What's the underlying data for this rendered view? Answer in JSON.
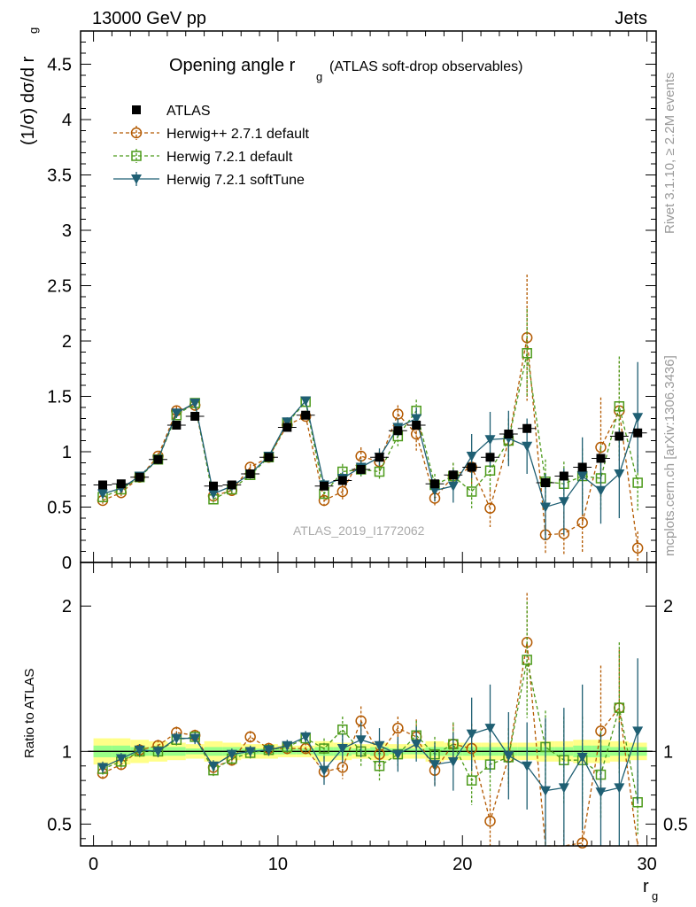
{
  "header": {
    "left": "13000 GeV pp",
    "right": "Jets"
  },
  "title": {
    "main": "Opening angle r",
    "sub": "g",
    "extra": "(ATLAS soft-drop observables)"
  },
  "ylabel_main": {
    "prefix": "(1/σ) dσ/d r",
    "sub": "g"
  },
  "ylabel_ratio": "Ratio to ATLAS",
  "xlabel": {
    "main": "r",
    "sub": "g"
  },
  "watermark": "ATLAS_2019_I1772062",
  "side_labels": {
    "rivet": "Rivet 3.1.10, ≥ 2.2M events",
    "mcplots": "mcplots.cern.ch [arXiv:1306.3436]"
  },
  "legend": [
    {
      "label": "ATLAS",
      "marker": "square-filled",
      "color": "#000000"
    },
    {
      "label": "Herwig++ 2.7.1 default",
      "marker": "circle-open",
      "color": "#b35900",
      "dash": true
    },
    {
      "label": "Herwig 7.2.1 default",
      "marker": "square-open",
      "color": "#4c9a1a",
      "dash": true
    },
    {
      "label": "Herwig 7.2.1 softTune",
      "marker": "triangle-down",
      "color": "#1f5f73",
      "dash": false
    }
  ],
  "chart_data": {
    "type": "line",
    "x": [
      0.5,
      1.5,
      2.5,
      3.5,
      4.5,
      5.5,
      6.5,
      7.5,
      8.5,
      9.5,
      10.5,
      11.5,
      12.5,
      13.5,
      14.5,
      15.5,
      16.5,
      17.5,
      18.5,
      19.5,
      20.5,
      21.5,
      22.5,
      23.5,
      24.5,
      25.5,
      26.5,
      27.5,
      28.5,
      29.5
    ],
    "xlim": [
      -0.7,
      30.5
    ],
    "xticks": [
      0,
      10,
      20,
      30
    ],
    "main_ylim": [
      0,
      4.8
    ],
    "main_yticks": [
      "0",
      "0.5",
      "1",
      "1.5",
      "2",
      "2.5",
      "3",
      "3.5",
      "4",
      "4.5"
    ],
    "ratio_ylim": [
      0.35,
      2.3
    ],
    "ratio_yticks": [
      "0.5",
      "1",
      "2"
    ],
    "data": {
      "name": "ATLAS",
      "values": [
        0.7,
        0.71,
        0.77,
        0.93,
        1.24,
        1.32,
        0.69,
        0.7,
        0.8,
        0.95,
        1.22,
        1.33,
        0.69,
        0.74,
        0.84,
        0.95,
        1.19,
        1.24,
        0.71,
        0.79,
        0.86,
        0.95,
        1.16,
        1.21,
        0.72,
        0.78,
        0.86,
        0.94,
        1.14,
        1.17
      ],
      "band_outer": [
        0.09,
        0.09,
        0.08,
        0.07,
        0.06,
        0.05,
        0.07,
        0.06,
        0.05,
        0.05,
        0.04,
        0.04,
        0.07,
        0.06,
        0.05,
        0.06,
        0.05,
        0.05,
        0.07,
        0.06,
        0.06,
        0.06,
        0.06,
        0.06,
        0.07,
        0.07,
        0.08,
        0.08,
        0.07,
        0.06
      ],
      "band_inner": [
        0.04,
        0.04,
        0.03,
        0.03,
        0.03,
        0.02,
        0.03,
        0.03,
        0.02,
        0.02,
        0.02,
        0.02,
        0.03,
        0.03,
        0.02,
        0.03,
        0.02,
        0.02,
        0.03,
        0.03,
        0.03,
        0.03,
        0.03,
        0.03,
        0.03,
        0.03,
        0.04,
        0.04,
        0.03,
        0.03
      ]
    },
    "series": [
      {
        "name": "Herwig++ 2.7.1 default",
        "values": [
          0.56,
          0.63,
          0.77,
          0.96,
          1.37,
          1.42,
          0.6,
          0.65,
          0.86,
          0.95,
          1.24,
          1.32,
          0.56,
          0.64,
          0.96,
          0.91,
          1.34,
          1.16,
          0.58,
          0.78,
          0.86,
          0.49,
          1.1,
          2.03,
          0.25,
          0.26,
          0.36,
          1.04,
          1.37,
          0.13
        ],
        "errors": [
          0.03,
          0.03,
          0.03,
          0.03,
          0.04,
          0.04,
          0.03,
          0.03,
          0.03,
          0.03,
          0.04,
          0.04,
          0.05,
          0.07,
          0.08,
          0.1,
          0.08,
          0.15,
          0.08,
          0.12,
          0.15,
          0.17,
          0.2,
          0.57,
          0.18,
          0.2,
          0.28,
          0.45,
          0.45,
          0.15
        ],
        "ratio": [
          0.85,
          0.91,
          1.01,
          1.04,
          1.13,
          1.11,
          0.89,
          0.94,
          1.1,
          1.02,
          1.02,
          1.02,
          0.86,
          0.89,
          1.21,
          0.98,
          1.16,
          1.1,
          0.87,
          1.05,
          1.02,
          0.52,
          0.96,
          1.75,
          0.28,
          0.2,
          0.37,
          1.14,
          1.3,
          0.2
        ],
        "ratio_err": [
          0.04,
          0.04,
          0.04,
          0.04,
          0.04,
          0.04,
          0.04,
          0.04,
          0.04,
          0.04,
          0.04,
          0.04,
          0.06,
          0.08,
          0.1,
          0.1,
          0.08,
          0.12,
          0.1,
          0.14,
          0.17,
          0.18,
          0.2,
          0.34,
          0.22,
          0.26,
          0.3,
          0.45,
          0.4,
          0.18
        ]
      },
      {
        "name": "Herwig 7.2.1 default",
        "values": [
          0.59,
          0.66,
          0.77,
          0.93,
          1.33,
          1.44,
          0.57,
          0.66,
          0.79,
          0.95,
          1.26,
          1.45,
          0.62,
          0.82,
          0.84,
          0.82,
          1.14,
          1.37,
          0.7,
          0.78,
          0.64,
          0.83,
          1.1,
          1.89,
          0.73,
          0.71,
          0.78,
          0.76,
          1.41,
          0.72
        ],
        "errors": [
          0.03,
          0.03,
          0.03,
          0.03,
          0.04,
          0.04,
          0.03,
          0.03,
          0.03,
          0.03,
          0.04,
          0.04,
          0.06,
          0.07,
          0.08,
          0.08,
          0.09,
          0.1,
          0.1,
          0.12,
          0.15,
          0.17,
          0.2,
          0.4,
          0.2,
          0.2,
          0.25,
          0.3,
          0.45,
          0.25
        ],
        "ratio": [
          0.88,
          0.93,
          1.0,
          1.0,
          1.08,
          1.1,
          0.87,
          0.95,
          0.99,
          1.01,
          1.03,
          1.09,
          1.02,
          1.15,
          1.0,
          0.9,
          0.98,
          1.11,
          0.98,
          1.05,
          0.8,
          0.91,
          0.96,
          1.63,
          1.03,
          0.94,
          0.94,
          0.84,
          1.3,
          0.65
        ],
        "ratio_err": [
          0.04,
          0.04,
          0.04,
          0.04,
          0.04,
          0.04,
          0.04,
          0.04,
          0.04,
          0.04,
          0.04,
          0.04,
          0.07,
          0.09,
          0.1,
          0.1,
          0.09,
          0.1,
          0.12,
          0.15,
          0.17,
          0.2,
          0.2,
          0.4,
          0.25,
          0.3,
          0.3,
          0.3,
          0.45,
          0.22
        ]
      },
      {
        "name": "Herwig 7.2.1 softTune",
        "values": [
          0.62,
          0.67,
          0.78,
          0.93,
          1.35,
          1.44,
          0.62,
          0.69,
          0.8,
          0.96,
          1.27,
          1.46,
          0.7,
          0.76,
          0.86,
          0.95,
          1.22,
          1.3,
          0.65,
          0.69,
          0.96,
          1.11,
          1.12,
          1.05,
          0.5,
          0.55,
          0.78,
          0.65,
          0.8,
          1.31
        ],
        "errors": [
          0.03,
          0.03,
          0.03,
          0.03,
          0.04,
          0.04,
          0.03,
          0.03,
          0.03,
          0.03,
          0.04,
          0.04,
          0.05,
          0.06,
          0.07,
          0.08,
          0.08,
          0.1,
          0.1,
          0.15,
          0.2,
          0.25,
          0.25,
          0.25,
          0.3,
          0.3,
          0.35,
          0.3,
          0.4,
          0.5
        ],
        "ratio": [
          0.89,
          0.95,
          1.01,
          1.0,
          1.09,
          1.09,
          0.9,
          0.98,
          1.0,
          1.01,
          1.04,
          1.1,
          0.87,
          1.02,
          1.08,
          1.04,
          0.98,
          1.05,
          0.91,
          0.93,
          1.12,
          1.16,
          0.97,
          0.9,
          0.73,
          0.75,
          0.96,
          0.72,
          0.75,
          1.14
        ],
        "ratio_err": [
          0.04,
          0.04,
          0.04,
          0.04,
          0.04,
          0.04,
          0.04,
          0.04,
          0.04,
          0.04,
          0.04,
          0.04,
          0.1,
          0.1,
          0.12,
          0.12,
          0.12,
          0.12,
          0.15,
          0.2,
          0.25,
          0.3,
          0.3,
          0.3,
          0.5,
          0.55,
          0.5,
          0.4,
          0.45,
          0.5
        ]
      }
    ]
  }
}
